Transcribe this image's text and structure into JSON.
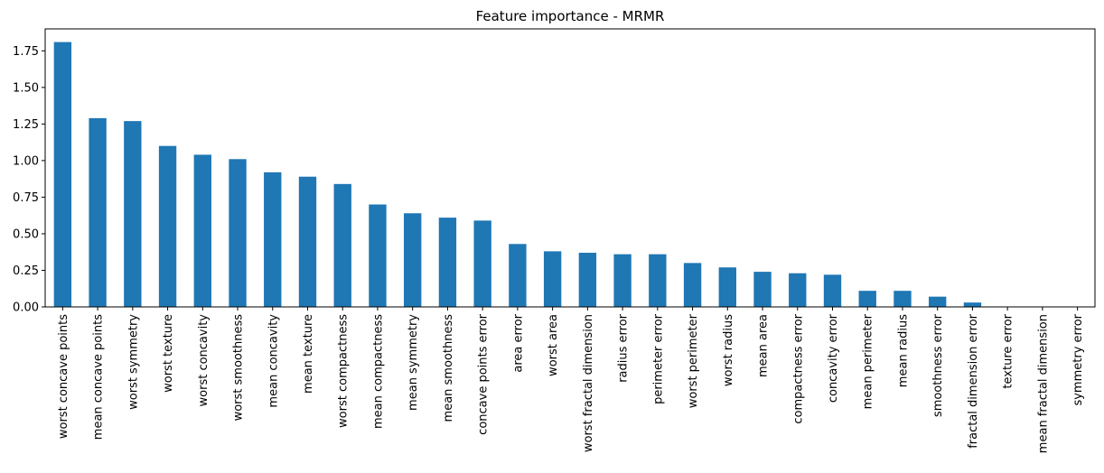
{
  "chart_data": {
    "type": "bar",
    "title": "Feature importance - MRMR",
    "xlabel": "",
    "ylabel": "",
    "ylim": [
      0,
      1.9
    ],
    "yticks": [
      0.0,
      0.25,
      0.5,
      0.75,
      1.0,
      1.25,
      1.5,
      1.75
    ],
    "ytick_labels": [
      "0.00",
      "0.25",
      "0.50",
      "0.75",
      "1.00",
      "1.25",
      "1.50",
      "1.75"
    ],
    "grid": false,
    "legend": "none",
    "bar_color": "#1f77b4",
    "categories": [
      "worst concave points",
      "mean concave points",
      "worst symmetry",
      "worst texture",
      "worst concavity",
      "worst smoothness",
      "mean concavity",
      "mean texture",
      "worst compactness",
      "mean compactness",
      "mean symmetry",
      "mean smoothness",
      "concave points error",
      "area error",
      "worst area",
      "worst fractal dimension",
      "radius error",
      "perimeter error",
      "worst perimeter",
      "worst radius",
      "mean area",
      "compactness error",
      "concavity error",
      "mean perimeter",
      "mean radius",
      "smoothness error",
      "fractal dimension error",
      "texture error",
      "mean fractal dimension",
      "symmetry error"
    ],
    "values": [
      1.81,
      1.29,
      1.27,
      1.1,
      1.04,
      1.01,
      0.92,
      0.89,
      0.84,
      0.7,
      0.64,
      0.61,
      0.59,
      0.43,
      0.38,
      0.37,
      0.36,
      0.36,
      0.3,
      0.27,
      0.24,
      0.23,
      0.22,
      0.11,
      0.11,
      0.07,
      0.03,
      0.0,
      0.0,
      0.0
    ]
  }
}
